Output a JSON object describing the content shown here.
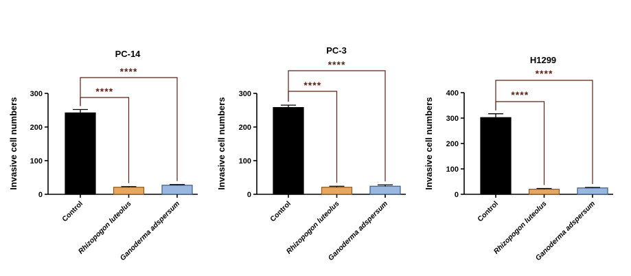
{
  "colors": {
    "axis": "#000000",
    "significance": "#5c1f14",
    "bars": [
      "#000000",
      "#e8a75f",
      "#9ab7df"
    ],
    "bar_edge": [
      "#000000",
      "#8a5a20",
      "#3a5a8a"
    ]
  },
  "chart_data": [
    {
      "type": "bar",
      "title": "PC-14",
      "ylabel": "Invasive cell numbers",
      "xlabel": "",
      "categories": [
        "Control",
        "Rhizopogon luteolus",
        "Ganoderma adspersum"
      ],
      "category_italic": [
        false,
        true,
        true
      ],
      "values": [
        242,
        21,
        27
      ],
      "errors": [
        10,
        2,
        2
      ],
      "ylim": [
        0,
        300
      ],
      "yticks": [
        0,
        100,
        200,
        300
      ],
      "significance": [
        {
          "from": 0,
          "to": 1,
          "label": "****"
        },
        {
          "from": 0,
          "to": 2,
          "label": "****"
        }
      ]
    },
    {
      "type": "bar",
      "title": "PC-3",
      "ylabel": "Invasive cell numbers",
      "xlabel": "",
      "categories": [
        "Control",
        "Rhizopogon luteolus",
        "Ganoderma adspersum"
      ],
      "category_italic": [
        false,
        true,
        true
      ],
      "values": [
        258,
        21,
        24
      ],
      "errors": [
        7,
        3,
        4
      ],
      "ylim": [
        0,
        300
      ],
      "yticks": [
        0,
        100,
        200,
        300
      ],
      "significance": [
        {
          "from": 0,
          "to": 1,
          "label": "****"
        },
        {
          "from": 0,
          "to": 2,
          "label": "****"
        }
      ]
    },
    {
      "type": "bar",
      "title": "H1299",
      "ylabel": "Invasive cell numbers",
      "xlabel": "",
      "categories": [
        "Control",
        "Rhizopogon luteolus",
        "Ganoderma adspersum"
      ],
      "category_italic": [
        false,
        true,
        true
      ],
      "values": [
        302,
        20,
        25
      ],
      "errors": [
        15,
        3,
        2
      ],
      "ylim": [
        0,
        400
      ],
      "yticks": [
        0,
        100,
        200,
        300,
        400
      ],
      "significance": [
        {
          "from": 0,
          "to": 1,
          "label": "****"
        },
        {
          "from": 0,
          "to": 2,
          "label": "****"
        }
      ]
    }
  ]
}
